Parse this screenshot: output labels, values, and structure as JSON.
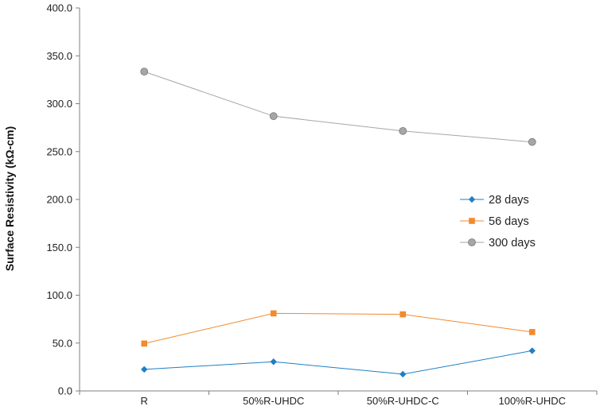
{
  "chart_data": {
    "type": "line",
    "title": "",
    "xlabel": "",
    "ylabel": "Surface Resistivity  (kΩ-cm)",
    "categories": [
      "R",
      "50%R-UHDC",
      "50%R-UHDC-C",
      "100%R-UHDC"
    ],
    "ylim": [
      0,
      400
    ],
    "yticks": [
      "0.0",
      "50.0",
      "100.0",
      "150.0",
      "200.0",
      "250.0",
      "300.0",
      "350.0",
      "400.0"
    ],
    "grid": false,
    "legend_position": "right",
    "series": [
      {
        "name": "28 days",
        "values": [
          22.5,
          30.5,
          17.5,
          42.0
        ],
        "color": "#1f7fc4",
        "marker": "diamond"
      },
      {
        "name": "56 days",
        "values": [
          49.5,
          81.0,
          80.0,
          61.5
        ],
        "color": "#f28a2e",
        "marker": "square"
      },
      {
        "name": "300 days",
        "values": [
          333.5,
          287.0,
          271.5,
          260.0
        ],
        "color": "#a6a6a6",
        "marker": "circle"
      }
    ]
  }
}
